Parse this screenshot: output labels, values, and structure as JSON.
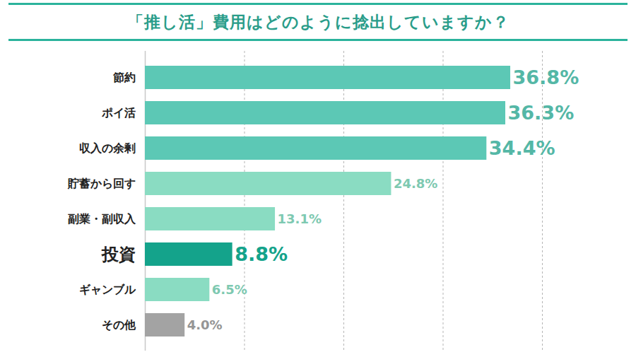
{
  "chart_data": {
    "type": "bar",
    "orientation": "horizontal",
    "title": "「推し活」費用はどのように捻出していますか？",
    "categories": [
      "節約",
      "ポイ活",
      "収入の余剰",
      "貯蓄から回す",
      "副業・副収入",
      "投資",
      "ギャンブル",
      "その他"
    ],
    "values": [
      36.8,
      36.3,
      34.4,
      24.8,
      13.1,
      8.8,
      6.5,
      4.0
    ],
    "value_labels": [
      "36.8%",
      "36.3%",
      "34.4%",
      "24.8%",
      "13.1%",
      "8.8%",
      "6.5%",
      "4.0%"
    ],
    "colors": [
      "#5cc8b5",
      "#5cc8b5",
      "#5cc8b5",
      "#8adcc2",
      "#8adcc2",
      "#14a38b",
      "#8adcc2",
      "#a3a3a3"
    ],
    "xlim": [
      0,
      40
    ],
    "xticks": [
      0,
      10,
      20,
      30,
      40
    ],
    "grid": true,
    "data_labels": true,
    "tick_labels": "y"
  }
}
